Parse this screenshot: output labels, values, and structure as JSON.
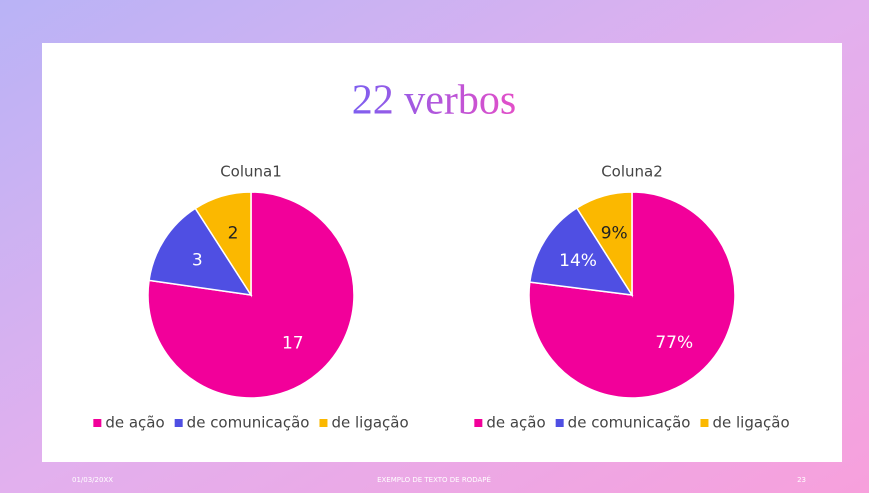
{
  "title": "22 verbos",
  "chart_data": [
    {
      "type": "pie",
      "title": "Coluna1",
      "categories": [
        "de ação",
        "de comunicação",
        "de ligação"
      ],
      "values": [
        17,
        3,
        2
      ],
      "colors": [
        "#f2009a",
        "#4f4fe3",
        "#fbb800"
      ]
    },
    {
      "type": "pie",
      "title": "Coluna2",
      "categories": [
        "de ação",
        "de comunicação",
        "de ligação"
      ],
      "values": [
        77,
        14,
        9
      ],
      "value_labels": [
        "77%",
        "14%",
        "9%"
      ],
      "colors": [
        "#f2009a",
        "#4f4fe3",
        "#fbb800"
      ]
    }
  ],
  "footer": {
    "date": "01/03/20XX",
    "text": "EXEMPLO DE TEXTO DE RODAPÉ",
    "page": "23"
  }
}
